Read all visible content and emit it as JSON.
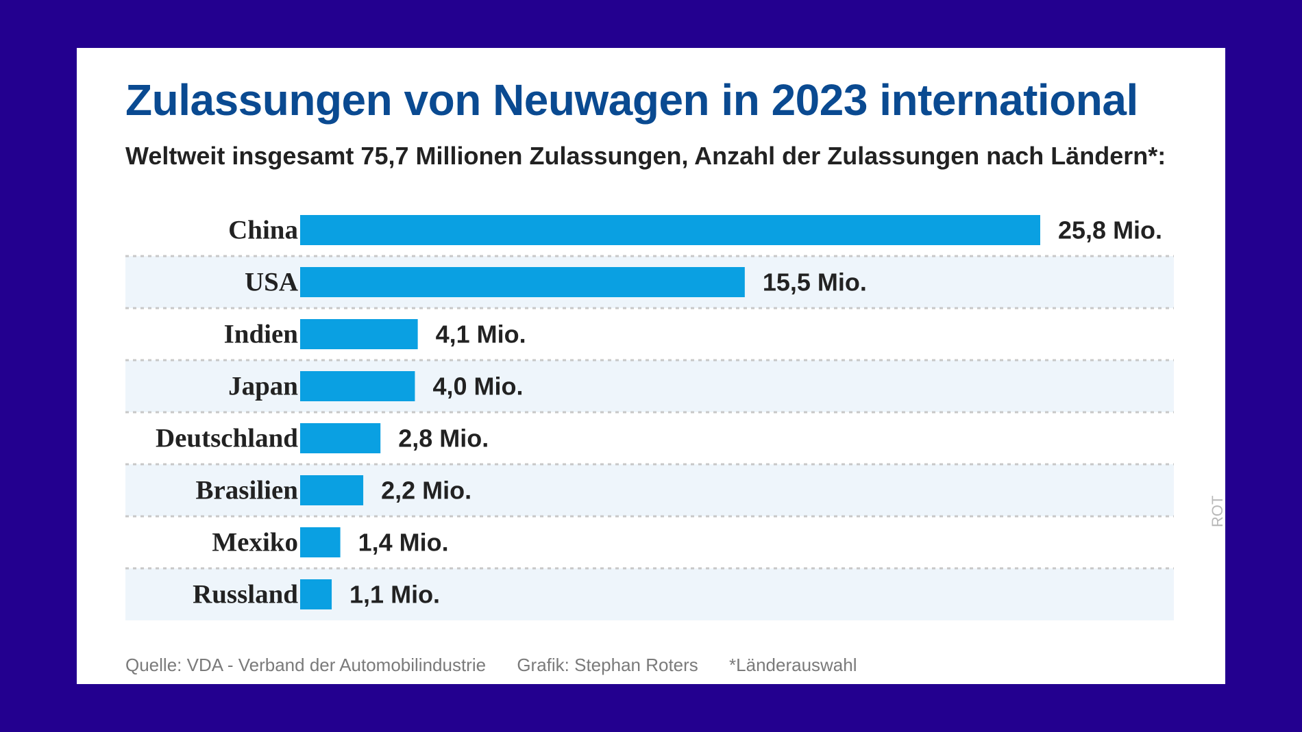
{
  "title": "Zulassungen von Neuwagen in 2023 international",
  "subtitle": "Weltweit insgesamt 75,7 Millionen Zulassungen, Anzahl der Zulassungen nach Ländern*:",
  "chart_data": {
    "type": "bar",
    "orientation": "horizontal",
    "title": "Zulassungen von Neuwagen in 2023 international",
    "subtitle": "Weltweit insgesamt 75,7 Millionen Zulassungen, Anzahl der Zulassungen nach Ländern*:",
    "unit": "Mio.",
    "categories": [
      "China",
      "USA",
      "Indien",
      "Japan",
      "Deutschland",
      "Brasilien",
      "Mexiko",
      "Russland"
    ],
    "values": [
      25.8,
      15.5,
      4.1,
      4.0,
      2.8,
      2.2,
      1.4,
      1.1
    ],
    "value_labels": [
      "25,8 Mio.",
      "15,5 Mio.",
      "4,1 Mio.",
      "4,0 Mio.",
      "2,8 Mio.",
      "2,2 Mio.",
      "1,4 Mio.",
      "1,1 Mio."
    ],
    "xlim": [
      0,
      25.8
    ],
    "xlabel": "",
    "ylabel": "",
    "grid": false,
    "bar_color": "#0aa0e2"
  },
  "footer": {
    "source": "Quelle: VDA - Verband der Automobilindustrie",
    "graphic": "Grafik: Stephan Roters",
    "note": "*Länderauswahl"
  },
  "side_credit": "ROT",
  "colors": {
    "background": "#23008f",
    "card": "#ffffff",
    "title": "#0a4a91",
    "bar": "#0aa0e2",
    "stripe": "#eef5fb",
    "divider": "#c8c8c8",
    "footer_text": "#7a7a7a"
  }
}
